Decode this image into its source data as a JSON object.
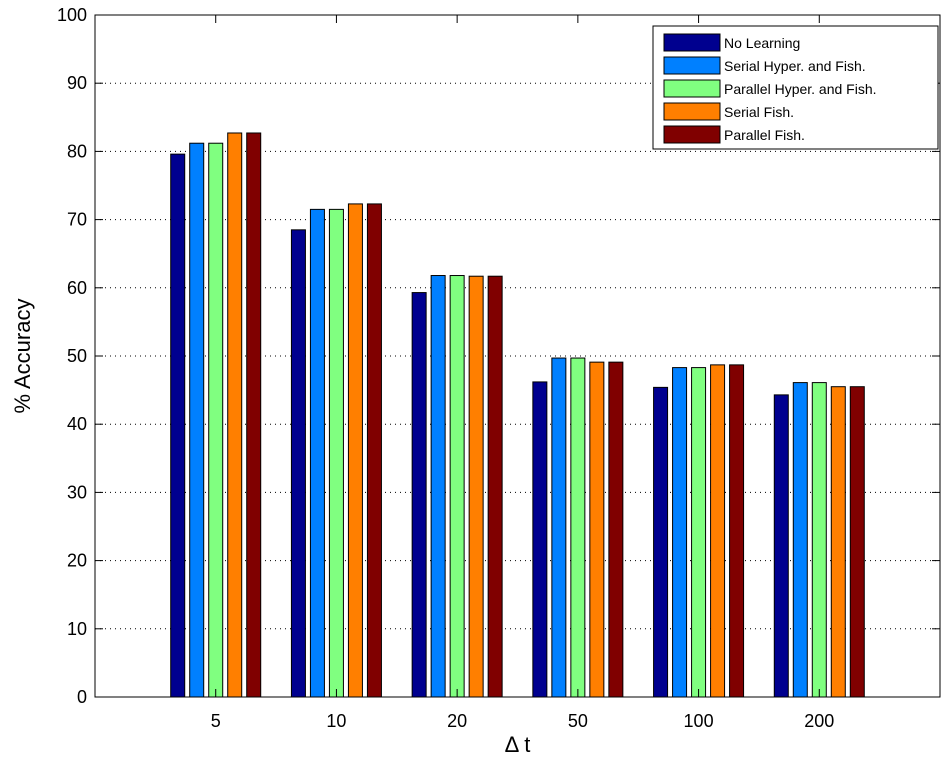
{
  "chart_data": {
    "type": "bar",
    "xlabel": "Δ t",
    "ylabel": "% Accuracy",
    "categories": [
      "5",
      "10",
      "20",
      "50",
      "100",
      "200"
    ],
    "ylim": [
      0,
      100
    ],
    "yticks": [
      0,
      10,
      20,
      30,
      40,
      50,
      60,
      70,
      80,
      90,
      100
    ],
    "grid": "y-dotted",
    "legend_position": "top-right",
    "series": [
      {
        "name": "No Learning",
        "color": "#00008f",
        "values": [
          79.6,
          68.5,
          59.3,
          46.2,
          45.4,
          44.3
        ]
      },
      {
        "name": "Serial Hyper. and Fish.",
        "color": "#0080ff",
        "values": [
          81.2,
          71.5,
          61.8,
          49.7,
          48.3,
          46.1
        ]
      },
      {
        "name": "Parallel Hyper. and Fish.",
        "color": "#80ff80",
        "values": [
          81.2,
          71.5,
          61.8,
          49.7,
          48.3,
          46.1
        ]
      },
      {
        "name": "Serial Fish.",
        "color": "#ff7f00",
        "values": [
          82.7,
          72.3,
          61.7,
          49.1,
          48.7,
          45.5
        ]
      },
      {
        "name": "Parallel Fish.",
        "color": "#800000",
        "values": [
          82.7,
          72.3,
          61.7,
          49.1,
          48.7,
          45.5
        ]
      }
    ]
  }
}
